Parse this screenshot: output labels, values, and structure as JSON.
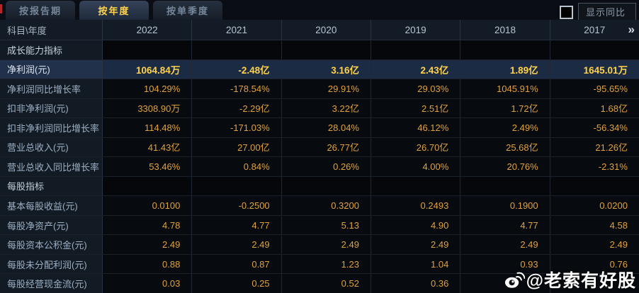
{
  "tabs": {
    "items": [
      {
        "id": "tab-report-period",
        "label": "按报告期",
        "active": false
      },
      {
        "id": "tab-annual",
        "label": "按年度",
        "active": true
      },
      {
        "id": "tab-quarterly",
        "label": "按单季度",
        "active": false
      }
    ]
  },
  "controls": {
    "show_yoy_label": "显示同比",
    "checkbox_checked": false
  },
  "table": {
    "corner_header": "科目\\年度",
    "years": [
      "2022",
      "2021",
      "2020",
      "2019",
      "2018",
      "2017"
    ],
    "more_columns_icon": "»",
    "rows": [
      {
        "id": "growth-section",
        "type": "section",
        "label": "成长能力指标",
        "values": [
          "",
          "",
          "",
          "",
          "",
          ""
        ]
      },
      {
        "id": "net-profit",
        "type": "highlight",
        "label": "净利润(元)",
        "values": [
          "1064.84万",
          "-2.48亿",
          "3.16亿",
          "2.43亿",
          "1.89亿",
          "1645.01万"
        ]
      },
      {
        "id": "net-profit-yoy",
        "type": "data",
        "label": "净利润同比增长率",
        "values": [
          "104.29%",
          "-178.54%",
          "29.91%",
          "29.03%",
          "1045.91%",
          "-95.65%"
        ]
      },
      {
        "id": "deducted-net-profit",
        "type": "data",
        "label": "扣非净利润(元)",
        "values": [
          "3308.90万",
          "-2.29亿",
          "3.22亿",
          "2.51亿",
          "1.72亿",
          "1.68亿"
        ]
      },
      {
        "id": "deducted-net-profit-yoy",
        "type": "data",
        "label": "扣非净利润同比增长率",
        "values": [
          "114.48%",
          "-171.03%",
          "28.04%",
          "46.12%",
          "2.49%",
          "-56.34%"
        ]
      },
      {
        "id": "total-revenue",
        "type": "data",
        "label": "营业总收入(元)",
        "values": [
          "41.43亿",
          "27.00亿",
          "26.77亿",
          "26.70亿",
          "25.68亿",
          "21.26亿"
        ]
      },
      {
        "id": "total-revenue-yoy",
        "type": "data",
        "label": "营业总收入同比增长率",
        "values": [
          "53.46%",
          "0.84%",
          "0.26%",
          "4.00%",
          "20.76%",
          "-2.31%"
        ]
      },
      {
        "id": "per-share-section",
        "type": "section",
        "label": "每股指标",
        "values": [
          "",
          "",
          "",
          "",
          "",
          ""
        ]
      },
      {
        "id": "basic-eps",
        "type": "data",
        "label": "基本每股收益(元)",
        "values": [
          "0.0100",
          "-0.2500",
          "0.3200",
          "0.2493",
          "0.1900",
          "0.0200"
        ]
      },
      {
        "id": "net-asset-per-share",
        "type": "data",
        "label": "每股净资产(元)",
        "values": [
          "4.78",
          "4.77",
          "5.13",
          "4.90",
          "4.77",
          "4.58"
        ]
      },
      {
        "id": "capital-reserve-per-share",
        "type": "data",
        "label": "每股资本公积金(元)",
        "values": [
          "2.49",
          "2.49",
          "2.49",
          "2.49",
          "2.49",
          "2.49"
        ]
      },
      {
        "id": "undist-profit-per-share",
        "type": "data",
        "label": "每股未分配利润(元)",
        "values": [
          "0.88",
          "0.87",
          "1.23",
          "1.04",
          "0.93",
          "0.76"
        ]
      },
      {
        "id": "op-cashflow-per-share",
        "type": "data",
        "label": "每股经营现金流(元)",
        "values": [
          "0.03",
          "0.25",
          "0.52",
          "0.36",
          "",
          ""
        ]
      }
    ]
  },
  "watermark": {
    "text": "@老索有好股",
    "icon": "weibo-icon"
  },
  "colors": {
    "accent_gold": "#ffd34d",
    "value_orange": "#e2a23b",
    "highlight_row_bg": "#1c2b44",
    "header_bg": "#131b26",
    "label_col_bg": "#121a24"
  }
}
